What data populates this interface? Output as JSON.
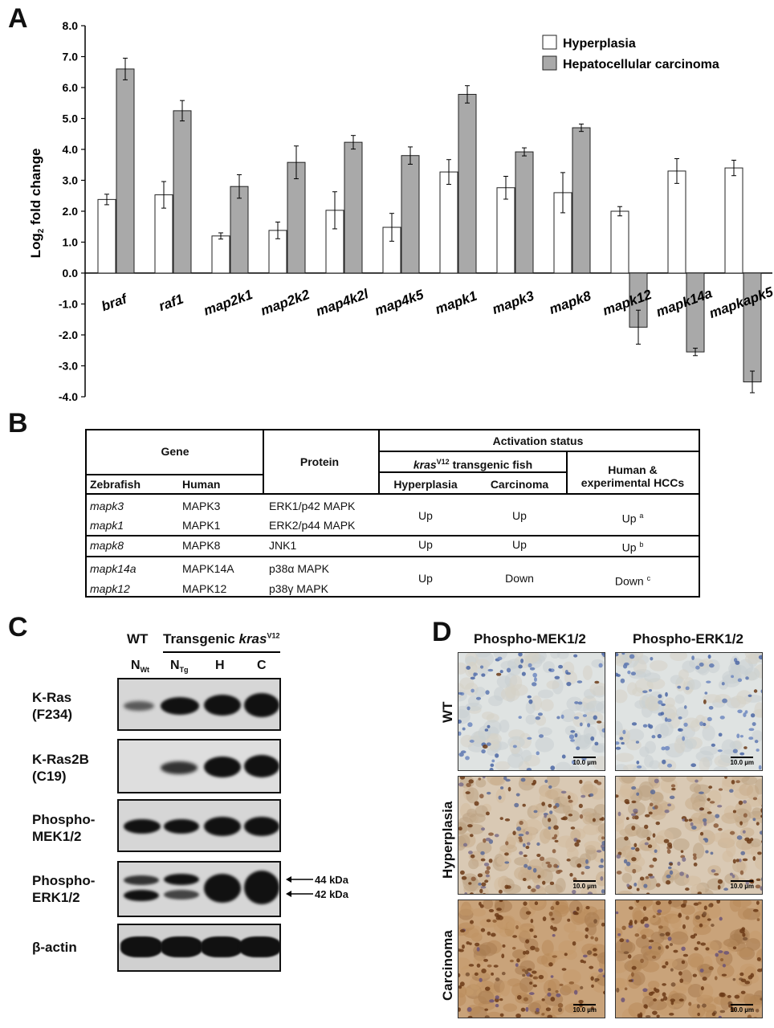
{
  "panels": {
    "a": "A",
    "b": "B",
    "c": "C",
    "d": "D"
  },
  "chart_data": {
    "type": "bar",
    "ylabel": "Log",
    "ylabel_sub": "2",
    "ylabel_rest": " fold change",
    "ylim": [
      -4.0,
      8.0
    ],
    "yticks": [
      "8.0",
      "7.0",
      "6.0",
      "5.0",
      "4.0",
      "3.0",
      "2.0",
      "1.0",
      "0.0",
      "-1.0",
      "-2.0",
      "-3.0",
      "-4.0"
    ],
    "categories": [
      "braf",
      "raf1",
      "map2k1",
      "map2k2",
      "map4k2l",
      "map4k5",
      "mapk1",
      "mapk3",
      "mapk8",
      "mapk12",
      "mapk14a",
      "mapkapk5"
    ],
    "legend_position": "top-right",
    "series": [
      {
        "name": "Hyperplasia",
        "color": "#ffffff",
        "values": [
          2.38,
          2.53,
          1.2,
          1.38,
          2.03,
          1.48,
          3.27,
          2.76,
          2.6,
          2.0,
          3.3,
          3.4
        ],
        "errors": [
          0.17,
          0.43,
          0.1,
          0.27,
          0.6,
          0.45,
          0.4,
          0.37,
          0.65,
          0.15,
          0.4,
          0.25
        ]
      },
      {
        "name": "Hepatocellular carcinoma",
        "color": "#a9a9a9",
        "values": [
          6.6,
          5.25,
          2.8,
          3.58,
          4.23,
          3.8,
          5.78,
          3.92,
          4.7,
          -1.75,
          -2.55,
          -3.52
        ],
        "errors": [
          0.35,
          0.33,
          0.38,
          0.53,
          0.22,
          0.28,
          0.28,
          0.13,
          0.12,
          0.55,
          0.12,
          0.35
        ]
      }
    ]
  },
  "table": {
    "gene_header": "Gene",
    "protein_header": "Protein",
    "activation_header": "Activation status",
    "kras_gene": "kras",
    "kras_sup": "V12",
    "kras_rest": " transgenic fish",
    "human_exp_line1": "Human &",
    "human_exp_line2": "experimental HCCs",
    "zebrafish_header": "Zebrafish",
    "human_header": "Human",
    "hyperplasia_header": "Hyperplasia",
    "carcinoma_header": "Carcinoma",
    "rows": [
      {
        "zebrafish": "mapk3",
        "human": "MAPK3",
        "protein": "ERK1/p42 MAPK"
      },
      {
        "zebrafish": "mapk1",
        "human": "MAPK1",
        "protein": "ERK2/p44 MAPK"
      },
      {
        "zebrafish": "mapk8",
        "human": "MAPK8",
        "protein": "JNK1"
      },
      {
        "zebrafish": "mapk14a",
        "human": "MAPK14A",
        "protein": "p38α MAPK"
      },
      {
        "zebrafish": "mapk12",
        "human": "MAPK12",
        "protein": "p38γ MAPK"
      }
    ],
    "groups": [
      {
        "hyperplasia": "Up",
        "carcinoma": "Up",
        "human": "Up",
        "note": "a"
      },
      {
        "hyperplasia": "Up",
        "carcinoma": "Up",
        "human": "Up",
        "note": "b"
      },
      {
        "hyperplasia": "Up",
        "carcinoma": "Down",
        "human": "Down",
        "note": "c"
      }
    ]
  },
  "blot": {
    "wt_header": "WT",
    "transgenic_header": "Transgenic ",
    "kras_gene": "kras",
    "kras_sup": "V12",
    "lanes": [
      {
        "main": "N",
        "sub": "Wt"
      },
      {
        "main": "N",
        "sub": "Tg"
      },
      {
        "main": "H",
        "sub": ""
      },
      {
        "main": "C",
        "sub": ""
      }
    ],
    "blots": [
      {
        "line1": "K-Ras",
        "line2": "(F234)"
      },
      {
        "line1": "K-Ras2B",
        "line2": "(C19)"
      },
      {
        "line1": "Phospho-",
        "line2": "MEK1/2"
      },
      {
        "line1": "Phospho-",
        "line2": "ERK1/2"
      },
      {
        "line1": "β-actin",
        "line2": ""
      }
    ],
    "markers": [
      "44 kDa",
      "42 kDa"
    ]
  },
  "ihc": {
    "columns": [
      "Phospho-MEK1/2",
      "Phospho-ERK1/2"
    ],
    "rows": [
      "WT",
      "Hyperplasia",
      "Carcinoma"
    ],
    "scale_label": "10.0 µm"
  }
}
